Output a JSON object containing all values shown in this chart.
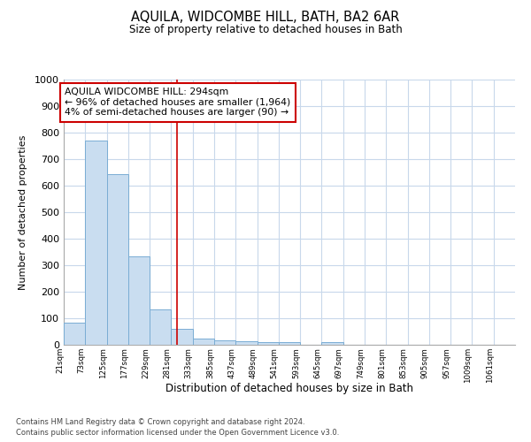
{
  "title": "AQUILA, WIDCOMBE HILL, BATH, BA2 6AR",
  "subtitle": "Size of property relative to detached houses in Bath",
  "xlabel": "Distribution of detached houses by size in Bath",
  "ylabel": "Number of detached properties",
  "bins": [
    21,
    73,
    125,
    177,
    229,
    281,
    333,
    385,
    437,
    489,
    541,
    593,
    645,
    697,
    749,
    801,
    853,
    905,
    957,
    1009,
    1061
  ],
  "bar_heights": [
    85,
    770,
    645,
    335,
    135,
    60,
    25,
    18,
    15,
    10,
    10,
    0,
    10,
    0,
    0,
    0,
    0,
    0,
    0,
    0,
    0
  ],
  "bar_color": "#c9ddf0",
  "bar_edge_color": "#7aadd4",
  "red_line_x": 294,
  "ylim": [
    0,
    1000
  ],
  "yticks": [
    0,
    100,
    200,
    300,
    400,
    500,
    600,
    700,
    800,
    900,
    1000
  ],
  "grid_color": "#c8d8eb",
  "annotation_text": "AQUILA WIDCOMBE HILL: 294sqm\n← 96% of detached houses are smaller (1,964)\n4% of semi-detached houses are larger (90) →",
  "annotation_box_facecolor": "#ffffff",
  "annotation_box_edgecolor": "#cc0000",
  "footer_line1": "Contains HM Land Registry data © Crown copyright and database right 2024.",
  "footer_line2": "Contains public sector information licensed under the Open Government Licence v3.0.",
  "tick_labels": [
    "21sqm",
    "73sqm",
    "125sqm",
    "177sqm",
    "229sqm",
    "281sqm",
    "333sqm",
    "385sqm",
    "437sqm",
    "489sqm",
    "541sqm",
    "593sqm",
    "645sqm",
    "697sqm",
    "749sqm",
    "801sqm",
    "853sqm",
    "905sqm",
    "957sqm",
    "1009sqm",
    "1061sqm"
  ],
  "bg_color": "#ffffff",
  "plot_bg_color": "#ffffff"
}
